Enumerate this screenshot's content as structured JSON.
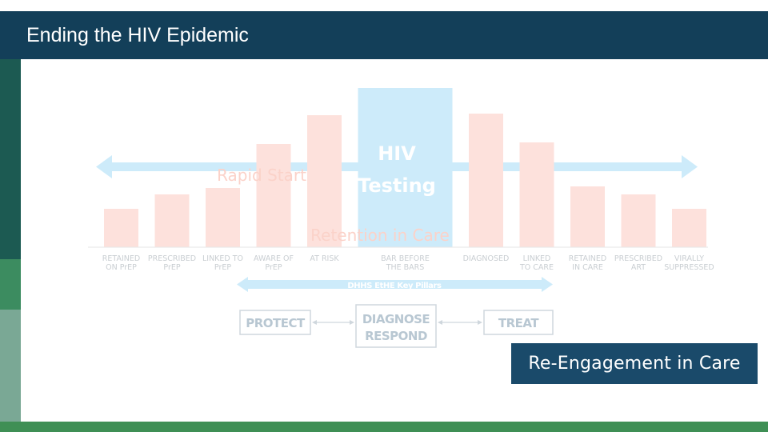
{
  "slide": {
    "title": "Ending the HIV Epidemic"
  },
  "colors": {
    "header_bg": "#133f59",
    "strip_1": "#1c5a52",
    "strip_2": "#3c8c60",
    "strip_3": "#7aa895",
    "bottom_bar": "#3f8f55",
    "bar_fill": "#fde1dc",
    "highlight_fill": "#cdebfa",
    "arrow_fill": "#cdebfa",
    "label_faded": "#b8c7d2",
    "callout_bg": "#1a4a6a"
  },
  "cascade": {
    "bars": [
      {
        "label": "RETAINED\nON PrEP",
        "level": 0.24
      },
      {
        "label": "PRESCRIBED\nPrEP",
        "level": 0.33
      },
      {
        "label": "LINKED TO\nPrEP",
        "level": 0.37
      },
      {
        "label": "AWARE OF\nPrEP",
        "level": 0.65
      },
      {
        "label": "AT RISK",
        "level": 0.83
      },
      {
        "label": "BAR BEFORE\nTHE BARS",
        "level": 1.0,
        "highlight": true
      },
      {
        "label": "DIAGNOSED",
        "level": 0.84
      },
      {
        "label": "LINKED\nTO CARE",
        "level": 0.66
      },
      {
        "label": "RETAINED\nIN CARE",
        "level": 0.38
      },
      {
        "label": "PRESCRIBED\nART",
        "level": 0.33
      },
      {
        "label": "VIRALLY\nSUPPRESSED",
        "level": 0.24
      }
    ],
    "overlays": {
      "rapid_start": "Rapid Start",
      "hiv_testing_line1": "HIV",
      "hiv_testing_line2": "Testing",
      "retention": "Retention in Care"
    }
  },
  "pillars": {
    "heading": "DHHS EtHE Key Pillars",
    "protect": "PROTECT",
    "diagnose": "DIAGNOSE",
    "respond": "RESPOND",
    "treat": "TREAT"
  },
  "callout": {
    "text": "Re-Engagement in Care"
  }
}
